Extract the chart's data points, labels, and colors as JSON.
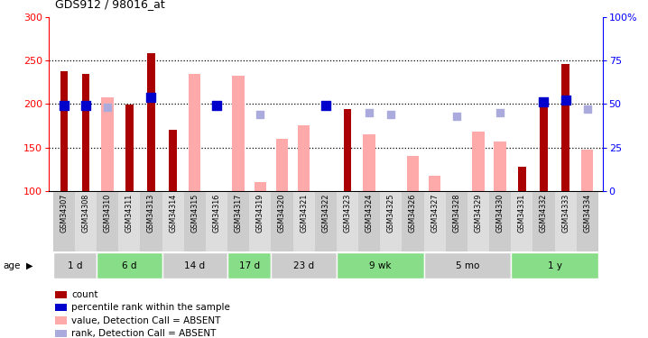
{
  "title": "GDS912 / 98016_at",
  "samples": [
    "GSM34307",
    "GSM34308",
    "GSM34310",
    "GSM34311",
    "GSM34313",
    "GSM34314",
    "GSM34315",
    "GSM34316",
    "GSM34317",
    "GSM34319",
    "GSM34320",
    "GSM34321",
    "GSM34322",
    "GSM34323",
    "GSM34324",
    "GSM34325",
    "GSM34326",
    "GSM34327",
    "GSM34328",
    "GSM34329",
    "GSM34330",
    "GSM34331",
    "GSM34332",
    "GSM34333",
    "GSM34334"
  ],
  "count": [
    238,
    234,
    null,
    199,
    258,
    170,
    null,
    null,
    null,
    null,
    null,
    null,
    null,
    194,
    null,
    null,
    null,
    null,
    null,
    null,
    null,
    128,
    200,
    246,
    null
  ],
  "absent_value": [
    null,
    null,
    208,
    null,
    null,
    null,
    234,
    null,
    232,
    110,
    160,
    175,
    null,
    null,
    165,
    null,
    140,
    117,
    null,
    168,
    157,
    null,
    null,
    null,
    148
  ],
  "percentile_rank": [
    49,
    49,
    null,
    null,
    54,
    null,
    null,
    49,
    null,
    null,
    null,
    null,
    49,
    null,
    null,
    null,
    null,
    null,
    null,
    null,
    null,
    null,
    51,
    52,
    null
  ],
  "absent_rank": [
    null,
    null,
    48,
    null,
    null,
    null,
    null,
    null,
    null,
    44,
    null,
    null,
    null,
    null,
    45,
    44,
    null,
    null,
    43,
    null,
    45,
    null,
    null,
    null,
    47
  ],
  "age_groups": [
    {
      "label": "1 d",
      "start": 0,
      "end": 2,
      "color": "#cccccc"
    },
    {
      "label": "6 d",
      "start": 2,
      "end": 5,
      "color": "#88dd88"
    },
    {
      "label": "14 d",
      "start": 5,
      "end": 8,
      "color": "#cccccc"
    },
    {
      "label": "17 d",
      "start": 8,
      "end": 10,
      "color": "#88dd88"
    },
    {
      "label": "23 d",
      "start": 10,
      "end": 13,
      "color": "#cccccc"
    },
    {
      "label": "9 wk",
      "start": 13,
      "end": 17,
      "color": "#88dd88"
    },
    {
      "label": "5 mo",
      "start": 17,
      "end": 21,
      "color": "#cccccc"
    },
    {
      "label": "1 y",
      "start": 21,
      "end": 25,
      "color": "#88dd88"
    }
  ],
  "ylim_left": [
    100,
    300
  ],
  "ylim_right": [
    0,
    100
  ],
  "yticks_left": [
    100,
    150,
    200,
    250,
    300
  ],
  "yticks_right": [
    0,
    25,
    50,
    75,
    100
  ],
  "count_color": "#aa0000",
  "absent_bar_color": "#ffaaaa",
  "rank_color": "#0000cc",
  "absent_rank_color": "#aaaadd",
  "xtick_bg_even": "#cccccc",
  "xtick_bg_odd": "#dddddd",
  "grid_lines": [
    150,
    200,
    250
  ]
}
